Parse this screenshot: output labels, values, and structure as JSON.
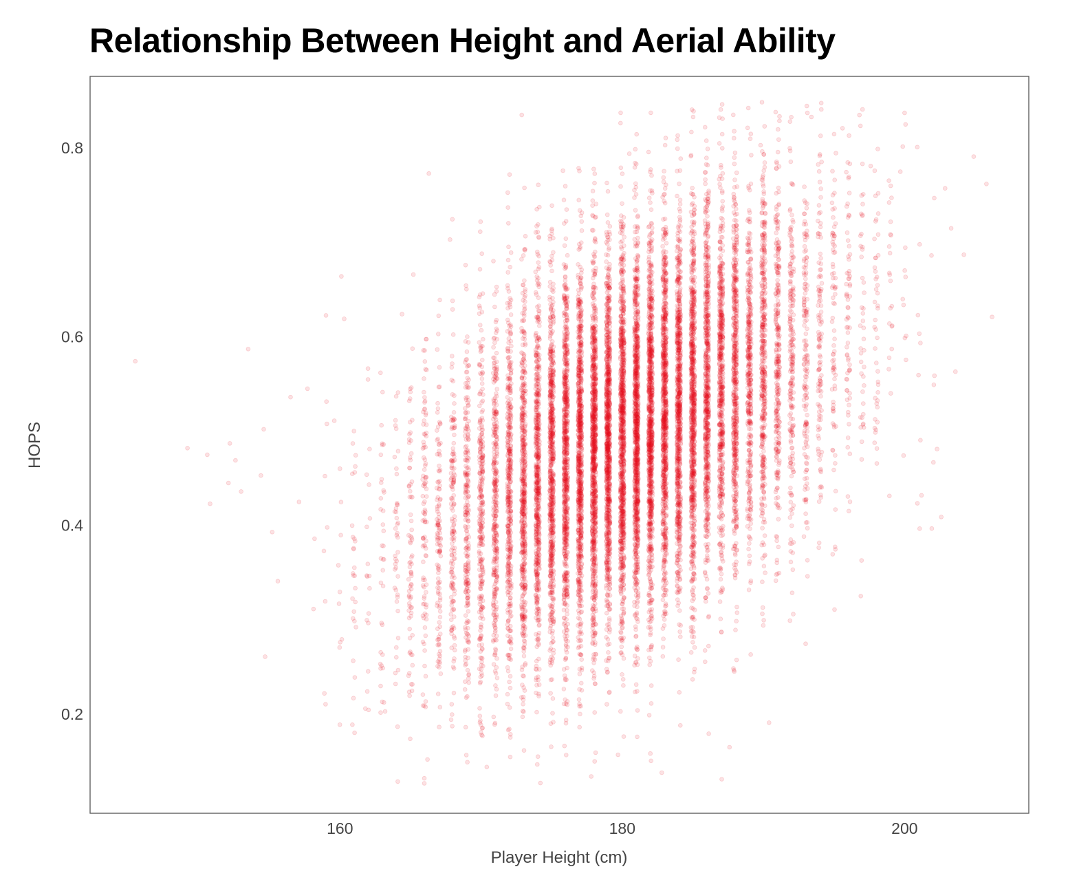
{
  "chart_data": {
    "type": "scatter",
    "title": "Relationship Between Height and Aerial Ability",
    "xlabel": "Player Height (cm)",
    "ylabel": "HOPS",
    "xlim": [
      142.3,
      208.8
    ],
    "ylim": [
      0.095,
      0.876
    ],
    "x_ticks": [
      160,
      180,
      200
    ],
    "y_ticks": [
      0.2,
      0.4,
      0.6,
      0.8
    ],
    "x_tick_labels": [
      "160",
      "180",
      "200"
    ],
    "y_tick_labels": [
      "0.2",
      "0.4",
      "0.6",
      "0.8"
    ],
    "grid": false,
    "legend": "none",
    "marker_color": "#e8101d",
    "marker_opacity": 0.12,
    "trend": {
      "x_mean": 180.4,
      "y_mean": 0.5,
      "slope_per_cm": 0.0076,
      "residual_sd": 0.1,
      "x_sd": 6.8
    },
    "points": [
      [
        145.5,
        0.574
      ],
      [
        149.2,
        0.482
      ],
      [
        150.6,
        0.475
      ],
      [
        150.8,
        0.423
      ],
      [
        152.1,
        0.445
      ],
      [
        152.2,
        0.487
      ],
      [
        152.6,
        0.469
      ],
      [
        153.0,
        0.436
      ],
      [
        153.5,
        0.587
      ],
      [
        154.4,
        0.453
      ],
      [
        154.6,
        0.502
      ],
      [
        154.7,
        0.261
      ],
      [
        155.2,
        0.393
      ],
      [
        155.6,
        0.341
      ],
      [
        156.5,
        0.536
      ],
      [
        157.1,
        0.425
      ],
      [
        157.7,
        0.545
      ],
      [
        158.2,
        0.386
      ],
      [
        158.9,
        0.222
      ],
      [
        159.1,
        0.398
      ],
      [
        159.6,
        0.511
      ],
      [
        160.3,
        0.619
      ],
      [
        160.1,
        0.664
      ],
      [
        161.8,
        0.206
      ],
      [
        162.1,
        0.481
      ],
      [
        163.2,
        0.203
      ],
      [
        164.4,
        0.624
      ],
      [
        165.2,
        0.666
      ],
      [
        166.2,
        0.152
      ],
      [
        166.3,
        0.773
      ],
      [
        167.8,
        0.703
      ],
      [
        168.9,
        0.676
      ],
      [
        170.4,
        0.144
      ],
      [
        174.2,
        0.127
      ],
      [
        175.8,
        0.776
      ],
      [
        177.8,
        0.134
      ],
      [
        179.7,
        0.157
      ],
      [
        180.5,
        0.794
      ],
      [
        182.8,
        0.138
      ],
      [
        184.9,
        0.817
      ],
      [
        187.6,
        0.165
      ],
      [
        189.8,
        0.803
      ],
      [
        190.4,
        0.191
      ],
      [
        191.9,
        0.797
      ],
      [
        193.4,
        0.833
      ],
      [
        194.1,
        0.841
      ],
      [
        195.6,
        0.821
      ],
      [
        196.8,
        0.835
      ],
      [
        197.6,
        0.781
      ],
      [
        198.1,
        0.799
      ],
      [
        199.7,
        0.775
      ],
      [
        200.9,
        0.801
      ],
      [
        201.2,
        0.432
      ],
      [
        202.1,
        0.747
      ],
      [
        202.3,
        0.481
      ],
      [
        202.6,
        0.409
      ],
      [
        203.3,
        0.715
      ],
      [
        203.6,
        0.563
      ],
      [
        204.2,
        0.687
      ],
      [
        204.9,
        0.791
      ],
      [
        205.8,
        0.762
      ],
      [
        206.2,
        0.621
      ]
    ],
    "background_point_count": 16000,
    "background_seed": 12345
  }
}
